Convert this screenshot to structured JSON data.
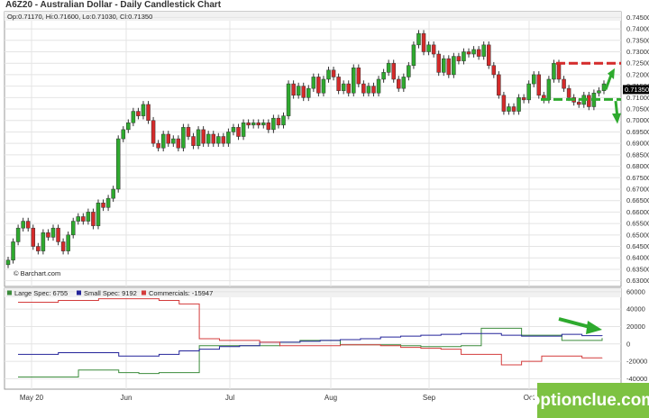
{
  "title": "A6Z20 - Australian Dollar - Daily Candlestick Chart",
  "ohlc_label": "Op:0.71170, Hi:0.71600, Lo:0.71030, Cl:0.71350",
  "price_tag": "0.71350",
  "copyright": "© Barchart.com",
  "watermark": "optionclue.com",
  "colors": {
    "up": "#2eaa2e",
    "down": "#d42a2a",
    "large_spec": "#3c8c3c",
    "small_spec": "#24249a",
    "commercials": "#d43c3c",
    "annotation_red": "#d42a2a",
    "annotation_green": "#2eaa2e",
    "tag_bg": "#000000"
  },
  "chart_data": [
    {
      "type": "candlestick",
      "title": "A6Z20 - Australian Dollar - Daily Candlestick Chart",
      "ylim": [
        0.6275,
        0.7475
      ],
      "y_ticks": [
        "0.74500",
        "0.74000",
        "0.73500",
        "0.73000",
        "0.72500",
        "0.72000",
        "0.71500",
        "0.71000",
        "0.70500",
        "0.70000",
        "0.69500",
        "0.69000",
        "0.68500",
        "0.68000",
        "0.67500",
        "0.67000",
        "0.66500",
        "0.66000",
        "0.65500",
        "0.65000",
        "0.64500",
        "0.64000",
        "0.63500",
        "0.63000"
      ],
      "x_labels": [
        "May 20",
        "Jun",
        "Jul",
        "Aug",
        "Sep",
        "Oct"
      ],
      "closes": [
        0.639,
        0.647,
        0.653,
        0.656,
        0.653,
        0.645,
        0.643,
        0.651,
        0.649,
        0.653,
        0.647,
        0.643,
        0.65,
        0.656,
        0.658,
        0.656,
        0.66,
        0.654,
        0.664,
        0.662,
        0.666,
        0.67,
        0.692,
        0.696,
        0.699,
        0.704,
        0.702,
        0.707,
        0.7,
        0.69,
        0.688,
        0.694,
        0.69,
        0.692,
        0.688,
        0.697,
        0.693,
        0.689,
        0.696,
        0.69,
        0.694,
        0.69,
        0.693,
        0.69,
        0.695,
        0.697,
        0.693,
        0.699,
        0.698,
        0.699,
        0.698,
        0.699,
        0.696,
        0.701,
        0.698,
        0.702,
        0.716,
        0.711,
        0.715,
        0.71,
        0.714,
        0.719,
        0.712,
        0.718,
        0.722,
        0.719,
        0.713,
        0.716,
        0.712,
        0.723,
        0.716,
        0.712,
        0.715,
        0.712,
        0.718,
        0.721,
        0.725,
        0.718,
        0.714,
        0.719,
        0.724,
        0.733,
        0.738,
        0.73,
        0.733,
        0.729,
        0.721,
        0.727,
        0.72,
        0.728,
        0.726,
        0.73,
        0.729,
        0.731,
        0.728,
        0.733,
        0.724,
        0.72,
        0.711,
        0.704,
        0.706,
        0.704,
        0.71,
        0.709,
        0.716,
        0.72,
        0.711,
        0.709,
        0.718,
        0.725,
        0.718,
        0.714,
        0.71,
        0.708,
        0.707,
        0.711,
        0.706,
        0.712,
        0.713,
        0.716
      ]
    },
    {
      "type": "line",
      "ylim": [
        -52000,
        64000
      ],
      "y_ticks": [
        "60000",
        "40000",
        "20000",
        "0",
        "-20000",
        "-40000"
      ],
      "series": [
        {
          "name": "Large Spec",
          "value": "6755",
          "values": [
            -38000,
            -38000,
            -38000,
            -30000,
            -30000,
            -33000,
            -34000,
            -33000,
            -33000,
            -2000,
            -2000,
            -2000,
            -2000,
            2000,
            4000,
            4000,
            -1000,
            -1000,
            -1000,
            -2000,
            -3000,
            -3000,
            -2000,
            18000,
            18000,
            10000,
            10000,
            4000,
            4000,
            6755
          ]
        },
        {
          "name": "Small Spec",
          "value": "9192",
          "values": [
            -12000,
            -12000,
            -10000,
            -10000,
            -10000,
            -14000,
            -14000,
            -12000,
            -8000,
            -6000,
            -3000,
            -2000,
            2000,
            2000,
            3000,
            4000,
            5000,
            6000,
            8000,
            9000,
            10000,
            11000,
            12000,
            12000,
            10000,
            9000,
            9000,
            11000,
            9500,
            9192
          ]
        },
        {
          "name": "Commercials",
          "value": "-15947",
          "values": [
            48000,
            48000,
            50000,
            50000,
            52000,
            52000,
            52000,
            50000,
            46000,
            6000,
            4000,
            4000,
            2000,
            -2000,
            -2000,
            -2000,
            -1000,
            -1000,
            -2000,
            -4000,
            -5000,
            -6000,
            -12000,
            -12000,
            -24000,
            -20000,
            -14000,
            -14000,
            -16000,
            -15947
          ]
        }
      ]
    }
  ]
}
